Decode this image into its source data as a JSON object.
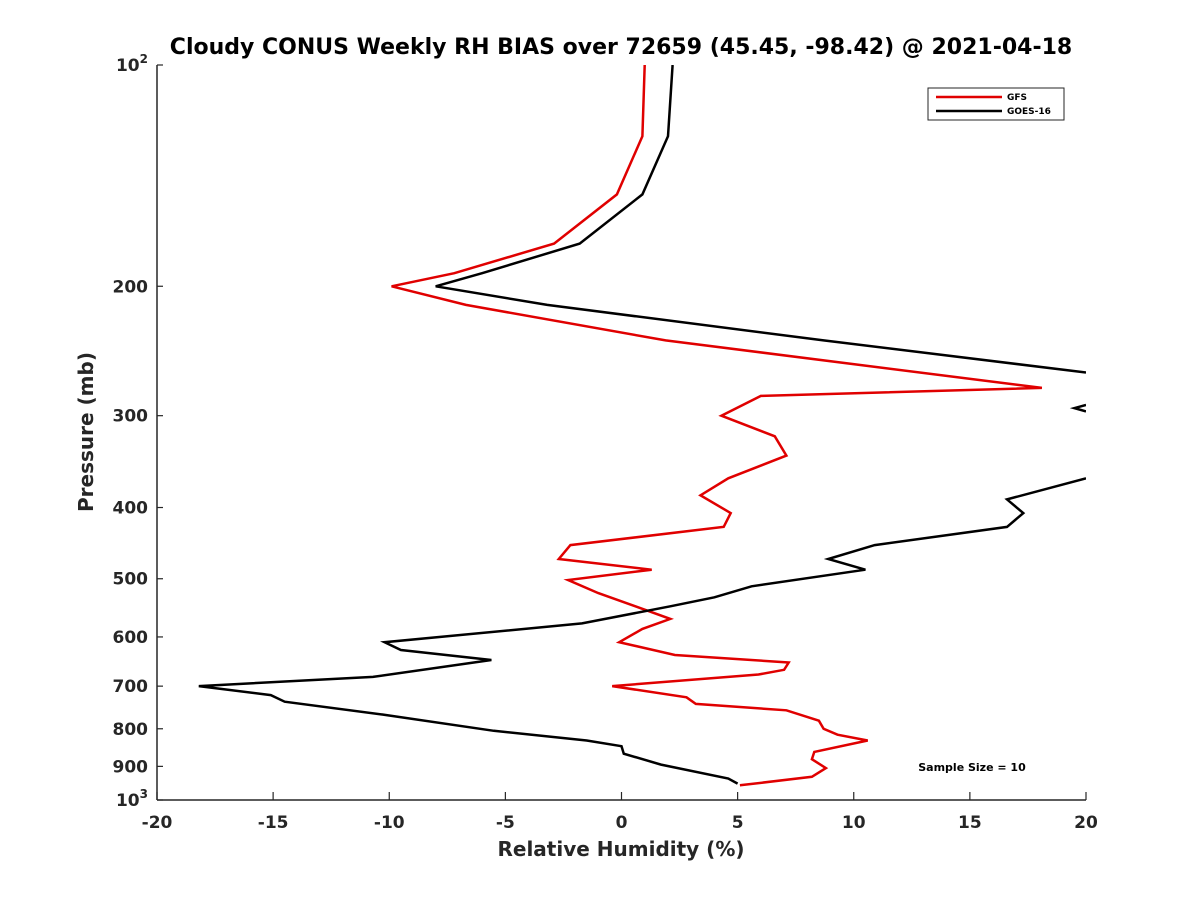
{
  "chart_data": {
    "type": "line",
    "title": "Cloudy CONUS Weekly RH BIAS over 72659 (45.45, -98.42) @ 2021-04-18",
    "xlabel": "Relative Humidity (%)",
    "ylabel": "Pressure (mb)",
    "xlim": [
      -20,
      20
    ],
    "ylim": [
      100,
      1000
    ],
    "y_scale": "log",
    "y_reversed": true,
    "x_ticks": [
      "-20",
      "-15",
      "-10",
      "-5",
      "0",
      "5",
      "10",
      "15",
      "20"
    ],
    "y_ticks": [
      {
        "value": 100,
        "base": "10",
        "exp": "2"
      },
      {
        "value": 200,
        "label": "200"
      },
      {
        "value": 300,
        "label": "300"
      },
      {
        "value": 400,
        "label": "400"
      },
      {
        "value": 500,
        "label": "500"
      },
      {
        "value": 600,
        "label": "600"
      },
      {
        "value": 700,
        "label": "700"
      },
      {
        "value": 800,
        "label": "800"
      },
      {
        "value": 900,
        "label": "900"
      },
      {
        "value": 1000,
        "base": "10",
        "exp": "3"
      }
    ],
    "grid": false,
    "legend_position": "top-right",
    "annotation": "Sample Size = 10",
    "series": [
      {
        "name": "GFS",
        "color": "#e00000",
        "points": [
          [
            1.0,
            100
          ],
          [
            0.9,
            125
          ],
          [
            -0.2,
            150
          ],
          [
            -2.9,
            175
          ],
          [
            -7.2,
            192
          ],
          [
            -9.9,
            200
          ],
          [
            -6.7,
            212
          ],
          [
            1.9,
            237
          ],
          [
            18.1,
            275
          ],
          [
            6.0,
            282
          ],
          [
            4.3,
            300
          ],
          [
            6.6,
            320
          ],
          [
            7.1,
            340
          ],
          [
            4.6,
            365
          ],
          [
            3.4,
            385
          ],
          [
            4.7,
            407
          ],
          [
            4.4,
            425
          ],
          [
            -2.2,
            450
          ],
          [
            -2.7,
            470
          ],
          [
            1.3,
            486
          ],
          [
            -2.3,
            502
          ],
          [
            -1.0,
            523
          ],
          [
            0.6,
            545
          ],
          [
            2.1,
            567
          ],
          [
            0.9,
            585
          ],
          [
            -0.1,
            610
          ],
          [
            2.3,
            635
          ],
          [
            7.2,
            650
          ],
          [
            7.0,
            665
          ],
          [
            5.9,
            675
          ],
          [
            -0.4,
            700
          ],
          [
            2.8,
            725
          ],
          [
            3.2,
            740
          ],
          [
            7.1,
            755
          ],
          [
            8.5,
            780
          ],
          [
            8.7,
            800
          ],
          [
            9.3,
            815
          ],
          [
            10.6,
            830
          ],
          [
            8.3,
            860
          ],
          [
            8.2,
            880
          ],
          [
            8.8,
            905
          ],
          [
            8.2,
            930
          ],
          [
            5.1,
            955
          ]
        ]
      },
      {
        "name": "GOES-16",
        "color": "#000000",
        "points": [
          [
            2.2,
            100
          ],
          [
            2.0,
            125
          ],
          [
            0.9,
            150
          ],
          [
            -1.8,
            175
          ],
          [
            -6.0,
            192
          ],
          [
            -8.0,
            200
          ],
          [
            -3.2,
            212
          ],
          [
            8.7,
            237
          ],
          [
            20.0,
            262
          ],
          null,
          [
            20.0,
            290
          ],
          [
            19.5,
            293
          ],
          [
            20.0,
            296
          ],
          null,
          [
            20.0,
            365
          ],
          [
            16.6,
            390
          ],
          [
            17.3,
            407
          ],
          [
            16.6,
            425
          ],
          [
            10.9,
            450
          ],
          [
            8.9,
            470
          ],
          [
            10.5,
            486
          ],
          [
            5.6,
            512
          ],
          [
            4.0,
            530
          ],
          [
            2.1,
            545
          ],
          [
            -1.7,
            575
          ],
          [
            -10.2,
            610
          ],
          [
            -9.5,
            625
          ],
          [
            -5.6,
            645
          ],
          [
            -10.7,
            680
          ],
          [
            -18.2,
            700
          ],
          [
            -15.1,
            720
          ],
          [
            -14.5,
            735
          ],
          [
            -10.3,
            765
          ],
          [
            -5.5,
            805
          ],
          [
            -1.5,
            830
          ],
          [
            0.0,
            845
          ],
          [
            0.1,
            865
          ],
          [
            1.7,
            895
          ],
          [
            4.6,
            935
          ],
          [
            5.0,
            950
          ]
        ]
      }
    ]
  }
}
